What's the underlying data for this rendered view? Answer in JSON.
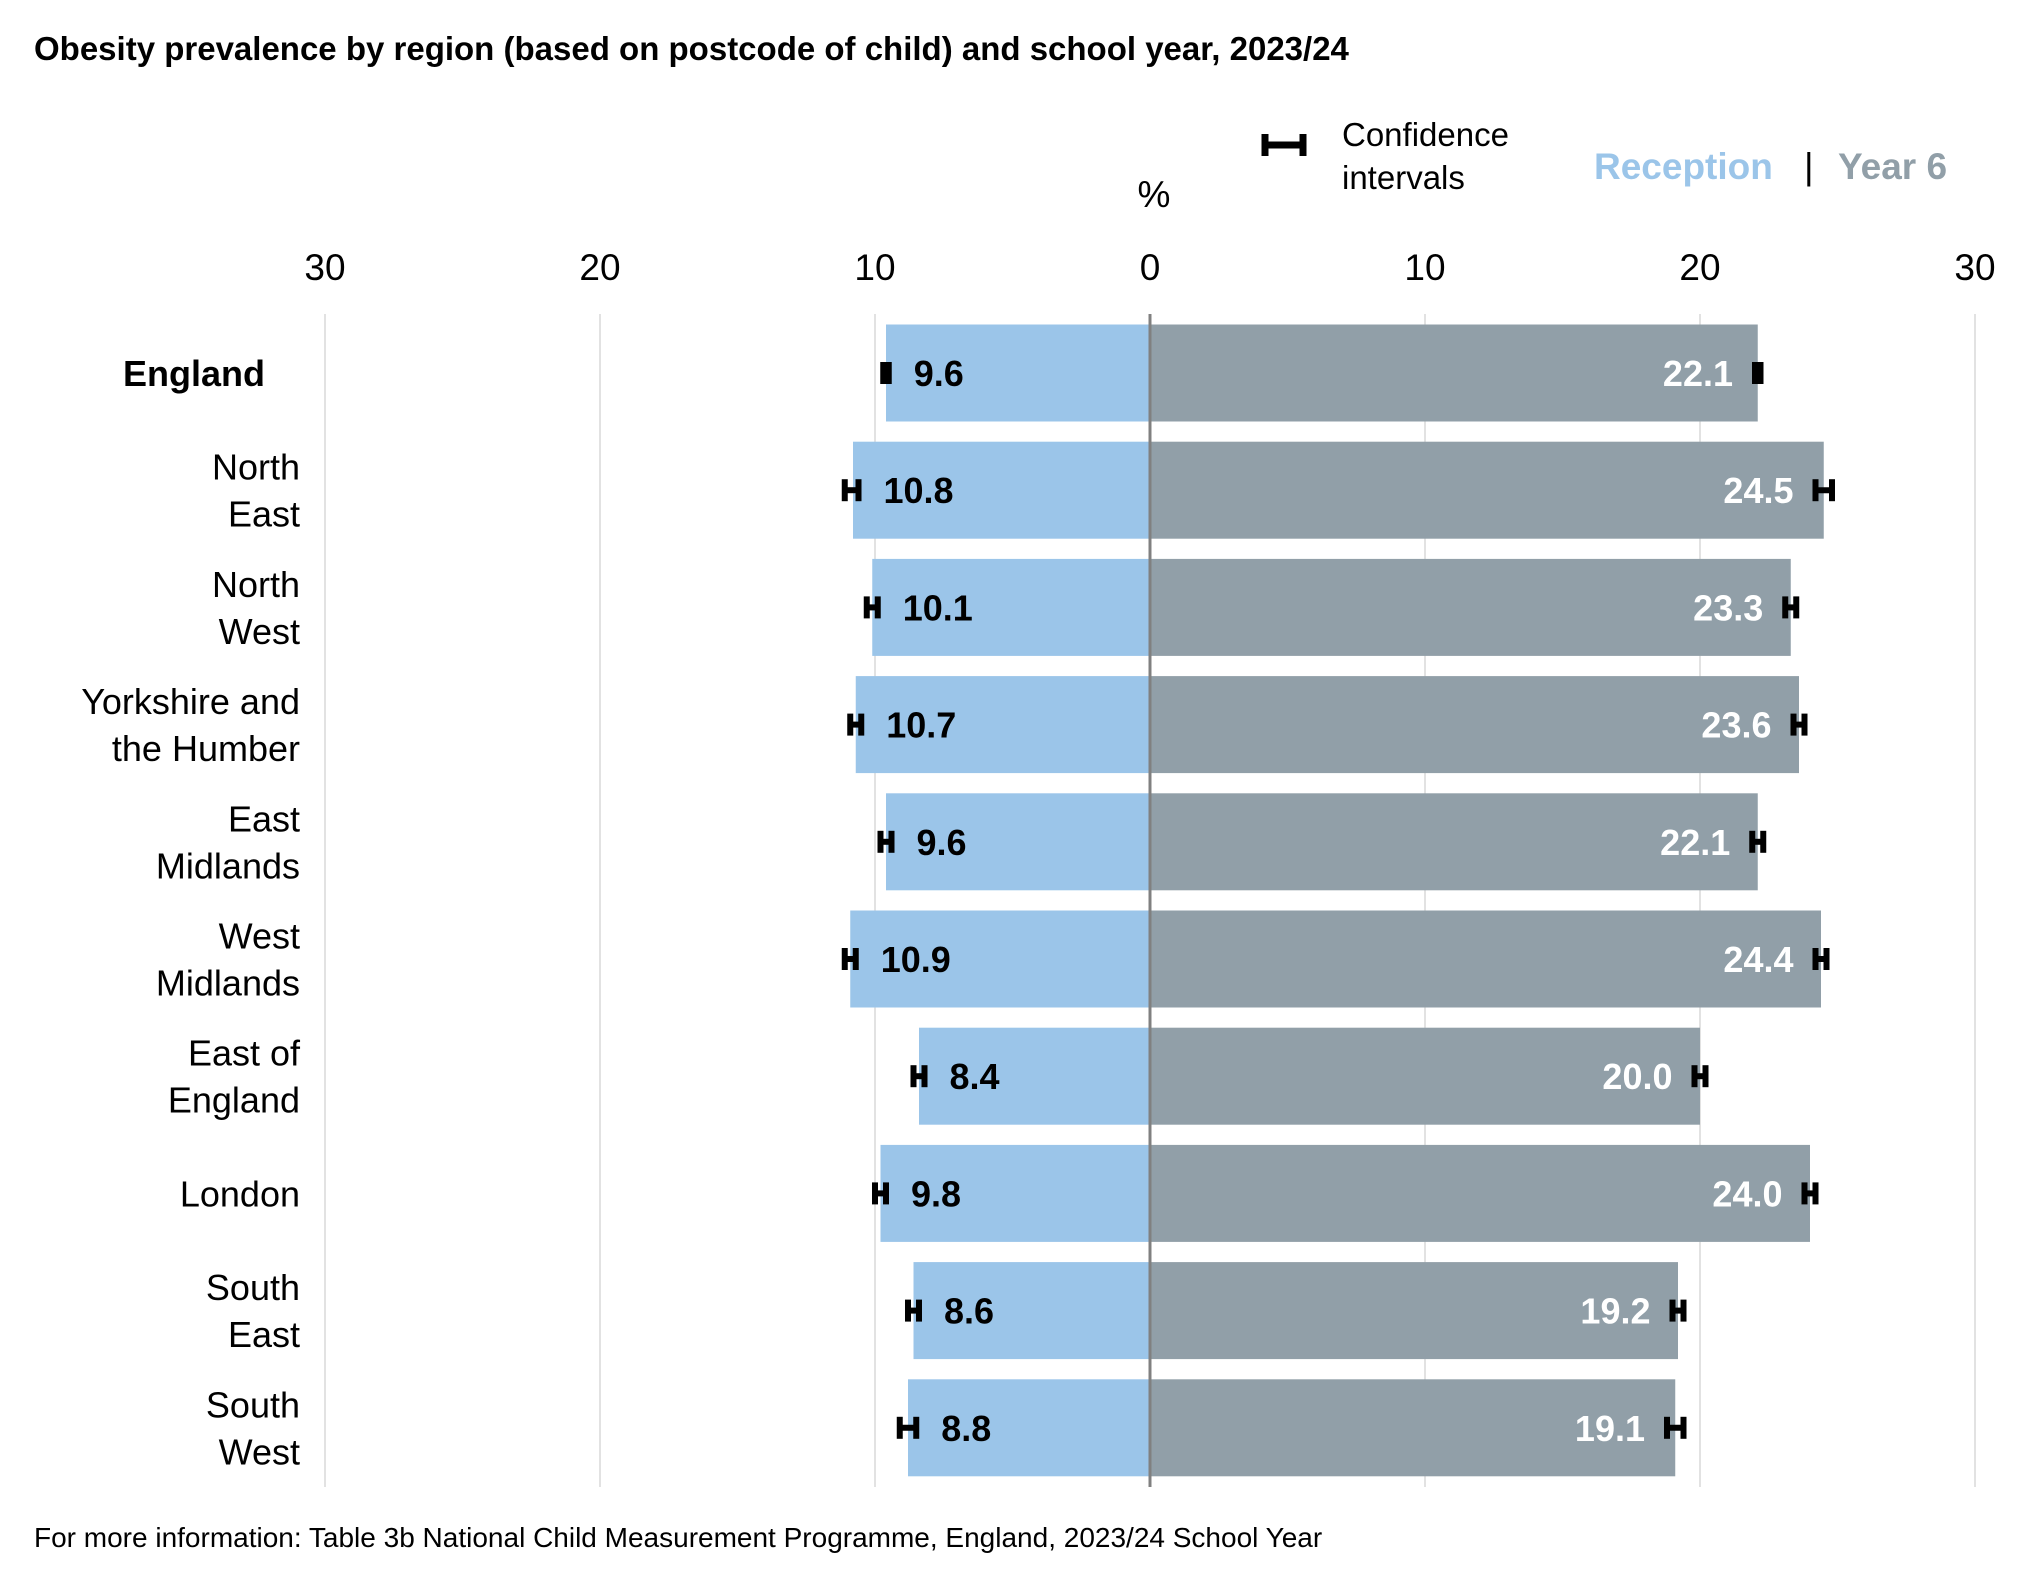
{
  "title": "Obesity prevalence by region (based on postcode of child) and school year, 2023/24",
  "footnote": "For more information: Table 3b National Child Measurement Programme, England, 2023/24 School Year",
  "legend": {
    "ci_label_line1": "Confidence",
    "ci_label_line2": "intervals",
    "reception_label": "Reception",
    "separator": "|",
    "year6_label": "Year 6"
  },
  "colors": {
    "reception": "#9BC5E9",
    "year6": "#919FA8",
    "reception_text": "#9BC5E9",
    "year6_text": "#919FA8",
    "ci": "#000000",
    "grid": "#D9D9D9",
    "axis": "#808080"
  },
  "chart_data": {
    "type": "bar",
    "orientation": "horizontal-diverging",
    "xlabel": "%",
    "xlim": [
      -30,
      30
    ],
    "xticks": [
      30,
      20,
      10,
      0,
      10,
      20,
      30
    ],
    "grid": true,
    "legend_position": "top-right",
    "categories": [
      {
        "label": "England",
        "lines": [
          "England"
        ],
        "bold": true
      },
      {
        "label": "North East",
        "lines": [
          "North",
          "East"
        ]
      },
      {
        "label": "North West",
        "lines": [
          "North",
          "West"
        ]
      },
      {
        "label": "Yorkshire and the Humber",
        "lines": [
          "Yorkshire and",
          "the Humber"
        ]
      },
      {
        "label": "East Midlands",
        "lines": [
          "East",
          "Midlands"
        ]
      },
      {
        "label": "West Midlands",
        "lines": [
          "West",
          "Midlands"
        ]
      },
      {
        "label": "East of England",
        "lines": [
          "East of",
          "England"
        ]
      },
      {
        "label": "London",
        "lines": [
          "London"
        ]
      },
      {
        "label": "South East",
        "lines": [
          "South",
          "East"
        ]
      },
      {
        "label": "South West",
        "lines": [
          "South",
          "West"
        ]
      }
    ],
    "series": [
      {
        "name": "Reception",
        "values": [
          9.6,
          10.8,
          10.1,
          10.7,
          9.6,
          10.9,
          8.4,
          9.8,
          8.6,
          8.8
        ],
        "labels": [
          "9.6",
          "10.8",
          "10.1",
          "10.7",
          "9.6",
          "10.9",
          "8.4",
          "9.8",
          "8.6",
          "8.8"
        ],
        "ci_low": [
          9.5,
          10.6,
          9.9,
          10.5,
          9.4,
          10.7,
          8.2,
          9.6,
          8.4,
          8.5
        ],
        "ci_high": [
          9.7,
          11.1,
          10.3,
          10.9,
          9.8,
          11.1,
          8.6,
          10.0,
          8.8,
          9.1
        ]
      },
      {
        "name": "Year 6",
        "values": [
          22.1,
          24.5,
          23.3,
          23.6,
          22.1,
          24.4,
          20.0,
          24.0,
          19.2,
          19.1
        ],
        "labels": [
          "22.1",
          "24.5",
          "23.3",
          "23.6",
          "22.1",
          "24.4",
          "20.0",
          "24.0",
          "19.2",
          "19.1"
        ],
        "ci_low": [
          22.0,
          24.2,
          23.1,
          23.4,
          21.9,
          24.2,
          19.8,
          23.8,
          19.0,
          18.8
        ],
        "ci_high": [
          22.2,
          24.8,
          23.5,
          23.8,
          22.3,
          24.6,
          20.2,
          24.2,
          19.4,
          19.4
        ]
      }
    ]
  }
}
